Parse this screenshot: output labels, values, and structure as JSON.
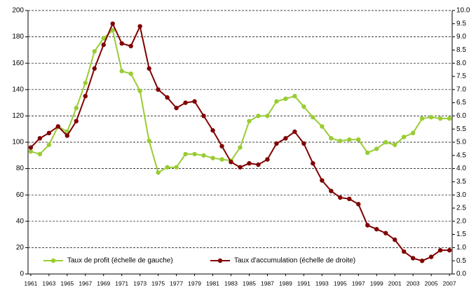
{
  "chart_data": {
    "type": "line",
    "x": [
      1961,
      1962,
      1963,
      1964,
      1965,
      1966,
      1967,
      1968,
      1969,
      1970,
      1971,
      1972,
      1973,
      1974,
      1975,
      1976,
      1977,
      1978,
      1979,
      1980,
      1981,
      1982,
      1983,
      1984,
      1985,
      1986,
      1987,
      1988,
      1989,
      1990,
      1991,
      1992,
      1993,
      1994,
      1995,
      1996,
      1997,
      1998,
      1999,
      2000,
      2001,
      2002,
      2003,
      2004,
      2005,
      2006,
      2007
    ],
    "xlim": [
      1960.7,
      2007.3
    ],
    "xticks": [
      1961,
      1963,
      1965,
      1967,
      1969,
      1971,
      1973,
      1975,
      1977,
      1979,
      1981,
      1983,
      1985,
      1987,
      1989,
      1991,
      1993,
      1995,
      1997,
      1999,
      2001,
      2003,
      2005,
      2007
    ],
    "ylim": [
      0,
      200
    ],
    "yticks": [
      0,
      20,
      40,
      60,
      80,
      100,
      120,
      140,
      160,
      180,
      200
    ],
    "y2lim": [
      0,
      10
    ],
    "y2ticks": [
      {
        "value": 0,
        "label": "0.0"
      },
      0.5,
      {
        "value": 1,
        "label": "1.0"
      },
      1.5,
      {
        "value": 2,
        "label": "2.0"
      },
      2.5,
      {
        "value": 3,
        "label": "3.0"
      },
      3.5,
      {
        "value": 4,
        "label": "4.0"
      },
      4.5,
      {
        "value": 5,
        "label": "5.0"
      },
      5.5,
      {
        "value": 6,
        "label": "6.0"
      },
      6.5,
      {
        "value": 7,
        "label": "7.0"
      },
      7.5,
      {
        "value": 8,
        "label": "8.0"
      },
      8.5,
      {
        "value": 9,
        "label": "9.0"
      },
      9.5,
      {
        "value": 10,
        "label": "10.0"
      }
    ],
    "grid": true,
    "legend": "lower left",
    "series": [
      {
        "name": "Taux de profit (échelle de gauche)",
        "color": "#99cc33",
        "axis": "y",
        "values": [
          93,
          91,
          98,
          112,
          108,
          126,
          145,
          169,
          179,
          185,
          154,
          152,
          139,
          101,
          77,
          81,
          81,
          91,
          91,
          90,
          88,
          87,
          86,
          96,
          116,
          120,
          120,
          131,
          133,
          135,
          127,
          119,
          112,
          103,
          101,
          102,
          102,
          92,
          95,
          100,
          98,
          104,
          107,
          118,
          119,
          118,
          118
        ]
      },
      {
        "name": "Taux d'accumulation (échelle de droite)",
        "color": "#800000",
        "axis": "y2",
        "values": [
          4.8,
          5.15,
          5.35,
          5.6,
          5.25,
          5.8,
          6.75,
          7.8,
          8.7,
          9.5,
          8.75,
          8.65,
          9.4,
          7.8,
          7.0,
          6.7,
          6.3,
          6.5,
          6.55,
          6.0,
          5.45,
          4.85,
          4.25,
          4.05,
          4.2,
          4.15,
          4.35,
          4.95,
          5.15,
          5.4,
          4.95,
          4.2,
          3.55,
          3.15,
          2.9,
          2.85,
          2.65,
          1.85,
          1.7,
          1.55,
          1.3,
          0.85,
          0.6,
          0.5,
          0.65,
          0.9,
          0.9
        ]
      }
    ]
  }
}
